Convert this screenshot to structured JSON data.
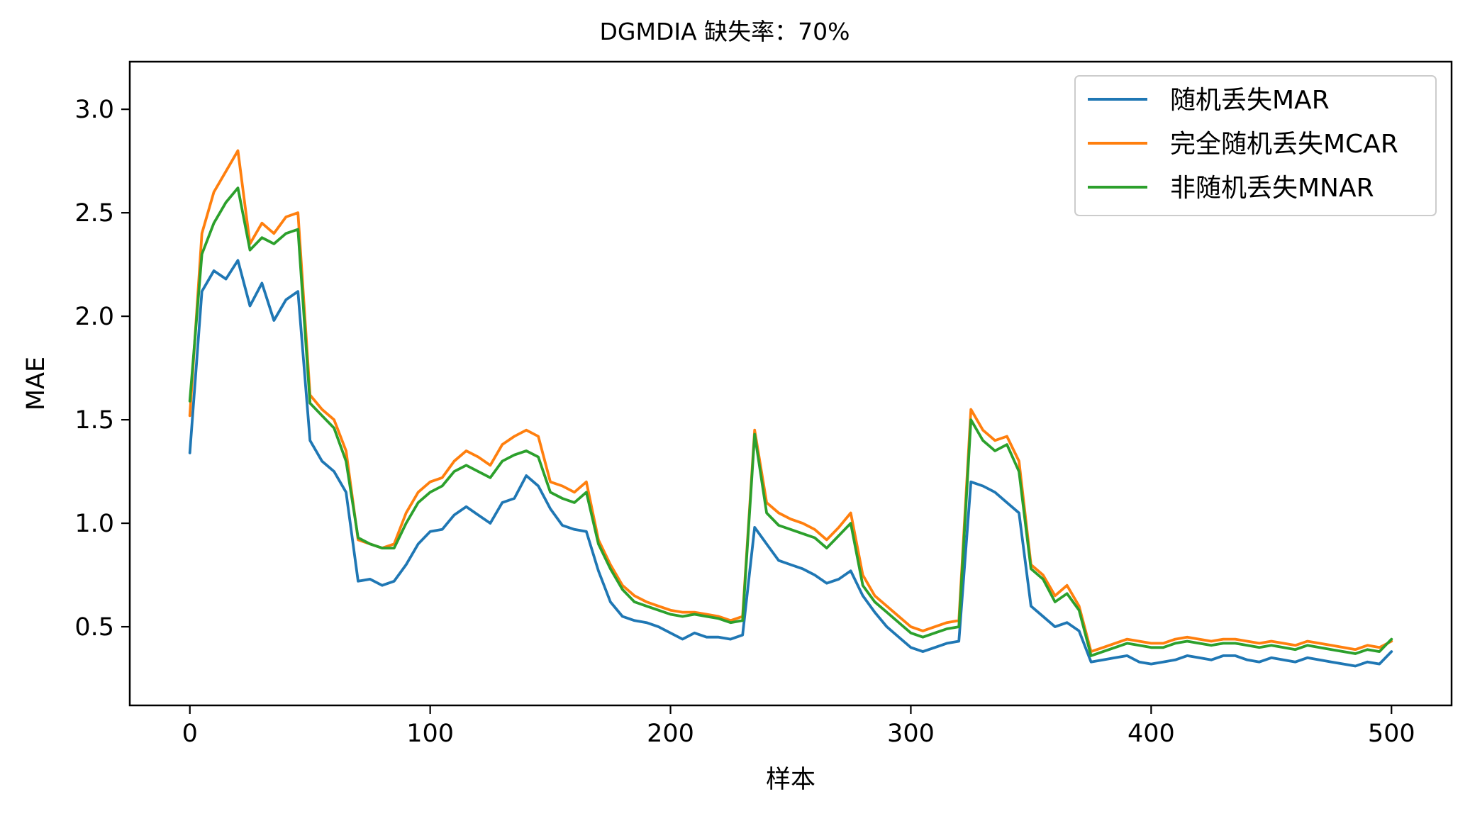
{
  "chart_data": {
    "type": "line",
    "title": "DGMDIA 缺失率：70%",
    "xlabel": "样本",
    "ylabel": "MAE",
    "xlim": [
      -25,
      525
    ],
    "ylim": [
      0.12,
      3.23
    ],
    "x_ticks": [
      0,
      100,
      200,
      300,
      400,
      500
    ],
    "x_tick_labels": [
      "0",
      "100",
      "200",
      "300",
      "400",
      "500"
    ],
    "y_ticks": [
      0.5,
      1.0,
      1.5,
      2.0,
      2.5,
      3.0
    ],
    "y_tick_labels": [
      "0.5",
      "1.0",
      "1.5",
      "2.0",
      "2.5",
      "3.0"
    ],
    "grid": false,
    "legend_position": "top-right",
    "x_start": 0,
    "x_step": 5,
    "series": [
      {
        "name": "随机丢失MAR",
        "color": "#1f77b4",
        "values": [
          1.34,
          2.12,
          2.22,
          2.18,
          2.27,
          2.05,
          2.16,
          1.98,
          2.08,
          2.12,
          1.4,
          1.3,
          1.25,
          1.15,
          0.72,
          0.73,
          0.7,
          0.72,
          0.8,
          0.9,
          0.96,
          0.97,
          1.04,
          1.08,
          1.04,
          1.0,
          1.1,
          1.12,
          1.23,
          1.18,
          1.07,
          0.99,
          0.97,
          0.96,
          0.77,
          0.62,
          0.55,
          0.53,
          0.52,
          0.5,
          0.47,
          0.44,
          0.47,
          0.45,
          0.45,
          0.44,
          0.46,
          0.98,
          0.9,
          0.82,
          0.8,
          0.78,
          0.75,
          0.71,
          0.73,
          0.77,
          0.65,
          0.57,
          0.5,
          0.45,
          0.4,
          0.38,
          0.4,
          0.42,
          0.43,
          1.2,
          1.18,
          1.15,
          1.1,
          1.05,
          0.6,
          0.55,
          0.5,
          0.52,
          0.48,
          0.33,
          0.34,
          0.35,
          0.36,
          0.33,
          0.32,
          0.33,
          0.34,
          0.36,
          0.35,
          0.34,
          0.36,
          0.36,
          0.34,
          0.33,
          0.35,
          0.34,
          0.33,
          0.35,
          0.34,
          0.33,
          0.32,
          0.31,
          0.33,
          0.32,
          0.38
        ]
      },
      {
        "name": "完全随机丢失MCAR",
        "color": "#ff7f0e",
        "values": [
          1.52,
          2.4,
          2.6,
          2.7,
          2.8,
          2.35,
          2.45,
          2.4,
          2.48,
          2.5,
          1.62,
          1.55,
          1.5,
          1.35,
          0.92,
          0.9,
          0.88,
          0.9,
          1.05,
          1.15,
          1.2,
          1.22,
          1.3,
          1.35,
          1.32,
          1.28,
          1.38,
          1.42,
          1.45,
          1.42,
          1.2,
          1.18,
          1.15,
          1.2,
          0.92,
          0.8,
          0.7,
          0.65,
          0.62,
          0.6,
          0.58,
          0.57,
          0.57,
          0.56,
          0.55,
          0.53,
          0.55,
          1.45,
          1.1,
          1.05,
          1.02,
          1.0,
          0.97,
          0.92,
          0.98,
          1.05,
          0.75,
          0.65,
          0.6,
          0.55,
          0.5,
          0.48,
          0.5,
          0.52,
          0.53,
          1.55,
          1.45,
          1.4,
          1.42,
          1.3,
          0.8,
          0.75,
          0.65,
          0.7,
          0.6,
          0.38,
          0.4,
          0.42,
          0.44,
          0.43,
          0.42,
          0.42,
          0.44,
          0.45,
          0.44,
          0.43,
          0.44,
          0.44,
          0.43,
          0.42,
          0.43,
          0.42,
          0.41,
          0.43,
          0.42,
          0.41,
          0.4,
          0.39,
          0.41,
          0.4,
          0.43
        ]
      },
      {
        "name": "非随机丢失MNAR",
        "color": "#2ca02c",
        "values": [
          1.59,
          2.3,
          2.45,
          2.55,
          2.62,
          2.32,
          2.38,
          2.35,
          2.4,
          2.42,
          1.58,
          1.52,
          1.46,
          1.3,
          0.93,
          0.9,
          0.88,
          0.88,
          1.0,
          1.1,
          1.15,
          1.18,
          1.25,
          1.28,
          1.25,
          1.22,
          1.3,
          1.33,
          1.35,
          1.32,
          1.15,
          1.12,
          1.1,
          1.15,
          0.9,
          0.78,
          0.68,
          0.62,
          0.6,
          0.58,
          0.56,
          0.55,
          0.56,
          0.55,
          0.54,
          0.52,
          0.53,
          1.43,
          1.05,
          0.99,
          0.97,
          0.95,
          0.93,
          0.88,
          0.94,
          1.0,
          0.7,
          0.62,
          0.57,
          0.52,
          0.47,
          0.45,
          0.47,
          0.49,
          0.5,
          1.5,
          1.4,
          1.35,
          1.38,
          1.25,
          0.78,
          0.73,
          0.62,
          0.66,
          0.58,
          0.36,
          0.38,
          0.4,
          0.42,
          0.41,
          0.4,
          0.4,
          0.42,
          0.43,
          0.42,
          0.41,
          0.42,
          0.42,
          0.41,
          0.4,
          0.41,
          0.4,
          0.39,
          0.41,
          0.4,
          0.39,
          0.38,
          0.37,
          0.39,
          0.38,
          0.44
        ]
      }
    ]
  }
}
